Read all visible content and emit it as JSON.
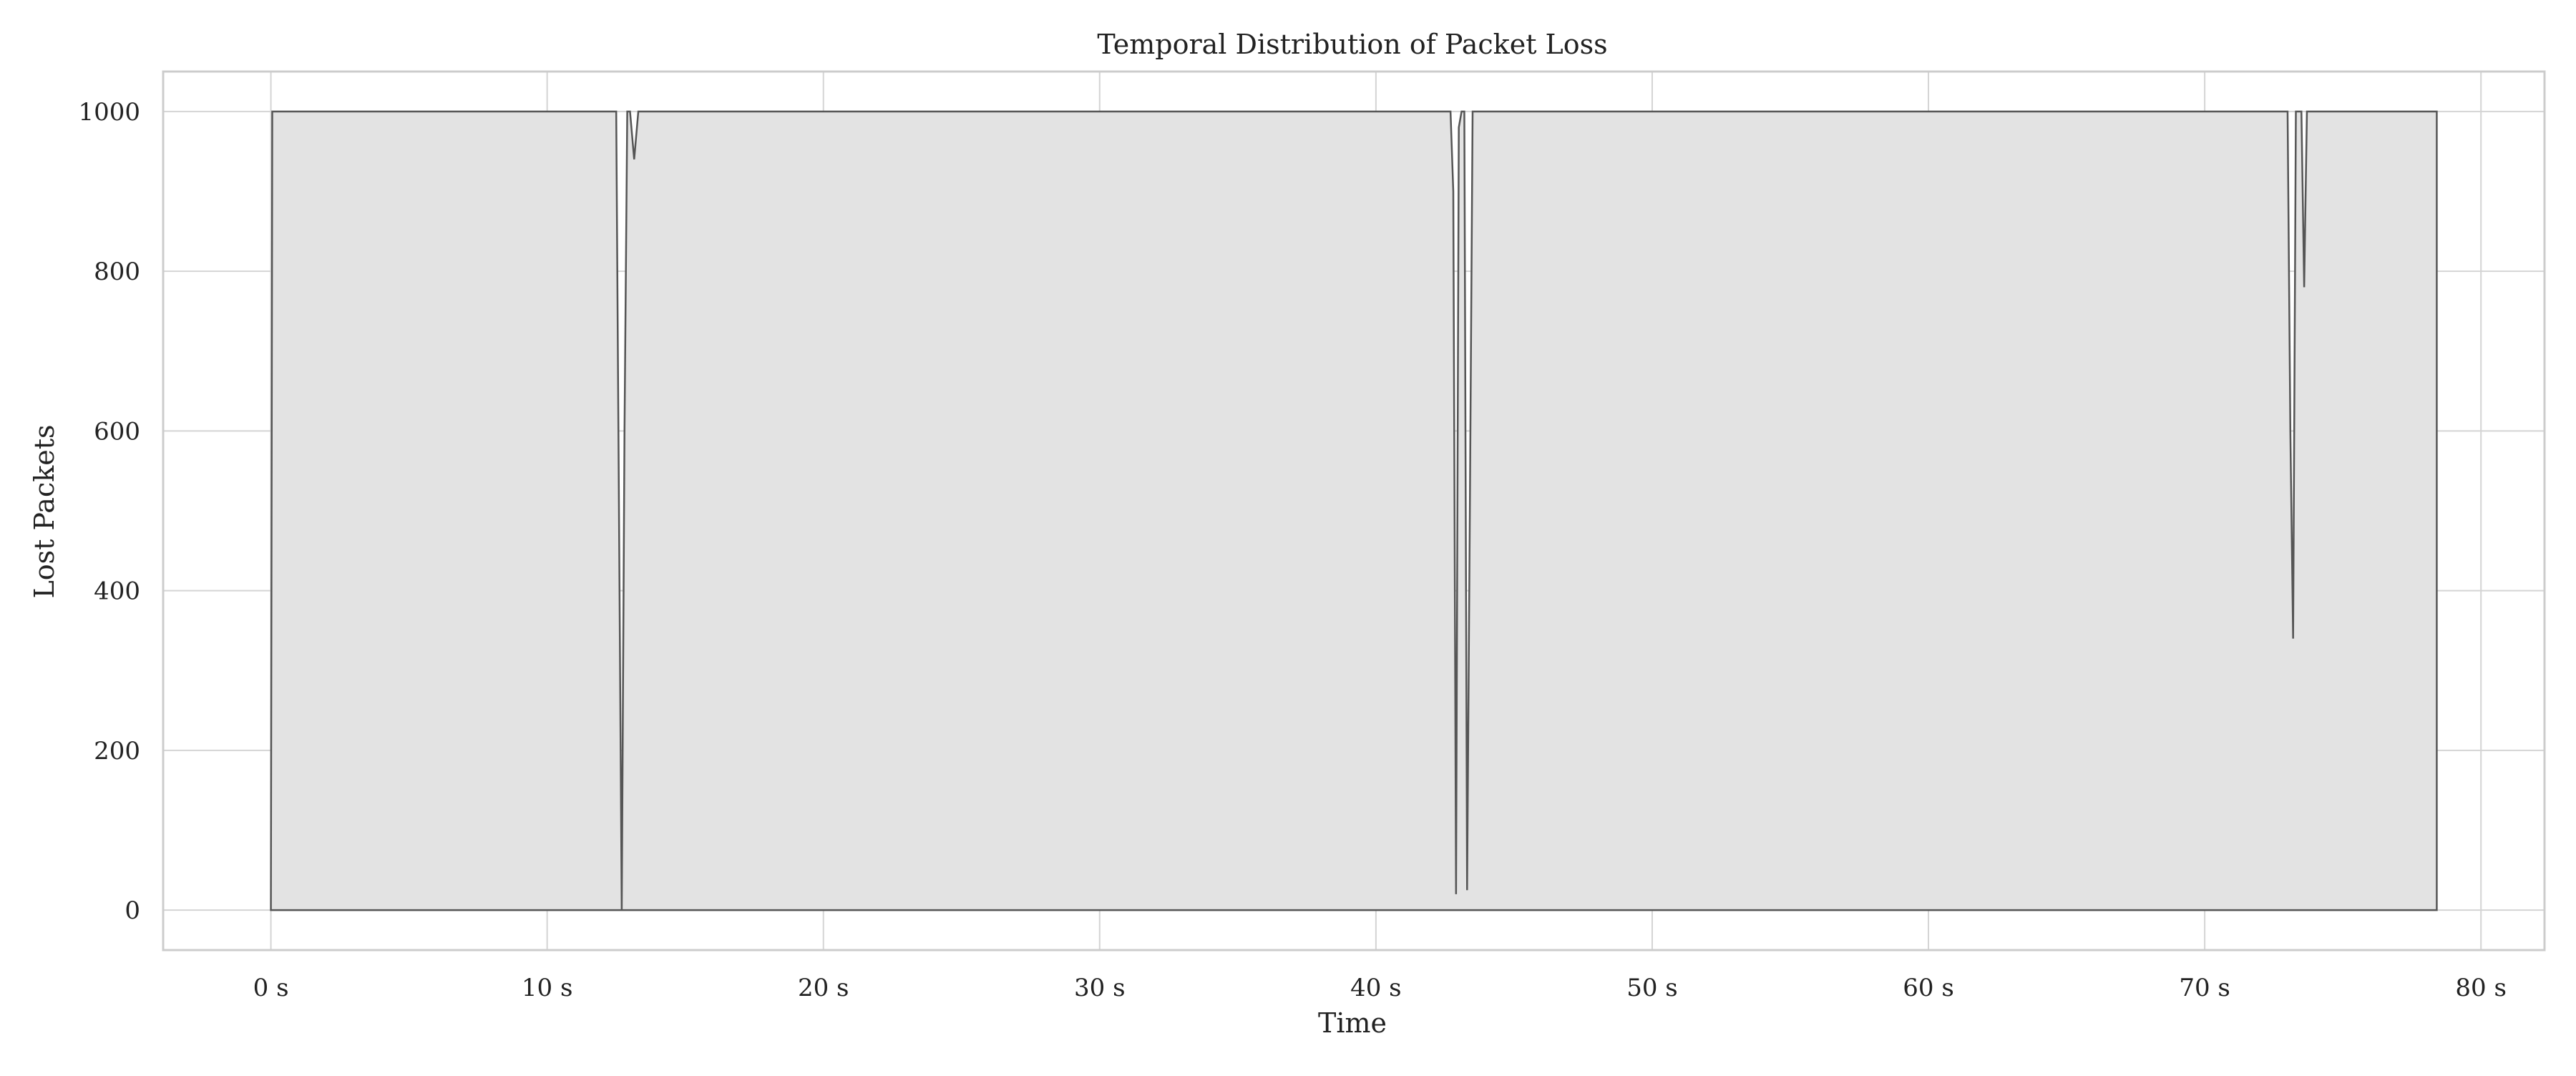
{
  "chart_data": {
    "type": "area",
    "title": "Temporal Distribution of Packet Loss",
    "xlabel": "Time",
    "ylabel": "Lost Packets",
    "xlim": [
      -3.9,
      82.3
    ],
    "ylim": [
      -50,
      1050
    ],
    "x_ticks": [
      0,
      10,
      20,
      30,
      40,
      50,
      60,
      70,
      80
    ],
    "x_tick_labels": [
      "0 s",
      "10 s",
      "20 s",
      "30 s",
      "40 s",
      "50 s",
      "60 s",
      "70 s",
      "80 s"
    ],
    "y_ticks": [
      0,
      200,
      400,
      600,
      800,
      1000
    ],
    "y_tick_labels": [
      "0",
      "200",
      "400",
      "600",
      "800",
      "1000"
    ],
    "grid": true,
    "legend": false,
    "colors": {
      "line": "#555555",
      "fill": "#e3e3e3",
      "grid": "#d4d4d4",
      "frame": "#cccccc"
    },
    "series": [
      {
        "x": [
          0.0,
          0.05,
          12.5,
          12.6,
          12.7,
          12.8,
          12.9,
          13.0,
          13.15,
          13.3,
          13.5,
          42.7,
          42.8,
          42.9,
          43.0,
          43.1,
          43.2,
          43.3,
          43.4,
          43.5,
          43.6,
          73.0,
          73.1,
          73.2,
          73.3,
          73.4,
          73.5,
          73.6,
          73.7,
          78.4
        ],
        "y": [
          0,
          1000,
          1000,
          500,
          0,
          600,
          1000,
          1000,
          940,
          1000,
          1000,
          1000,
          900,
          20,
          980,
          1000,
          1000,
          25,
          500,
          1000,
          1000,
          1000,
          600,
          340,
          1000,
          1000,
          1000,
          780,
          1000,
          1000
        ]
      }
    ]
  }
}
